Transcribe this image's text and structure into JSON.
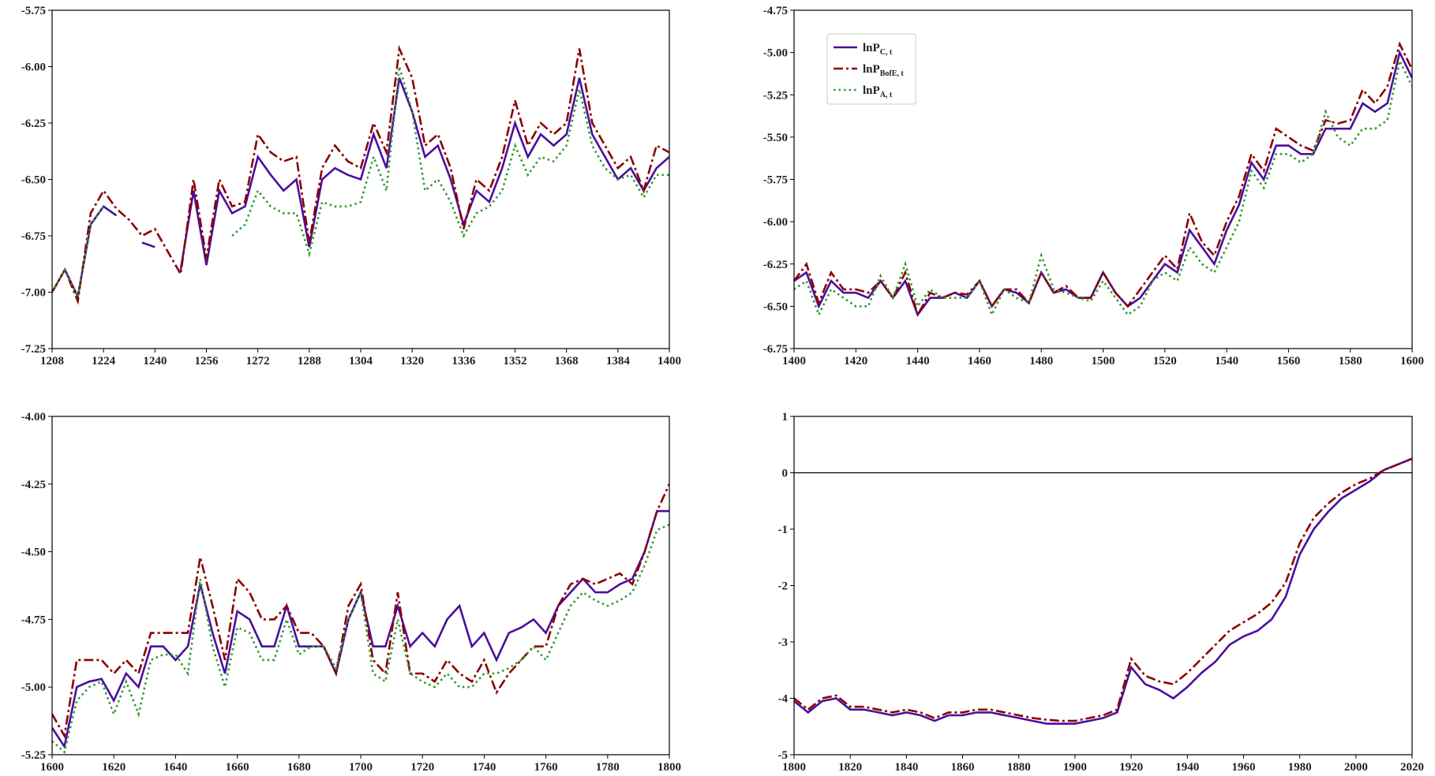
{
  "chart_data": [
    {
      "type": "line",
      "xlim": [
        1208,
        1400
      ],
      "xticks": [
        1208,
        1224,
        1240,
        1256,
        1272,
        1288,
        1304,
        1320,
        1336,
        1352,
        1368,
        1384,
        1400
      ],
      "ylim": [
        -7.25,
        -5.75
      ],
      "yticks": [
        -7.25,
        {
          "value": -7,
          "label": "-7.00"
        },
        -6.75,
        {
          "value": -6.5,
          "label": "-6.50"
        },
        -6.25,
        {
          "value": -6,
          "label": "-6.00"
        },
        -5.75
      ],
      "x": [
        1208,
        1212,
        1216,
        1220,
        1224,
        1228,
        1232,
        1236,
        1240,
        1244,
        1248,
        1252,
        1256,
        1260,
        1264,
        1268,
        1272,
        1276,
        1280,
        1284,
        1288,
        1292,
        1296,
        1300,
        1304,
        1308,
        1312,
        1316,
        1320,
        1324,
        1328,
        1332,
        1336,
        1340,
        1344,
        1348,
        1352,
        1356,
        1360,
        1364,
        1368,
        1372,
        1376,
        1380,
        1384,
        1388,
        1392,
        1396,
        1400
      ],
      "series": [
        {
          "color": "#4b0f9e",
          "dash": "solid",
          "values": [
            -7.0,
            -6.9,
            -7.02,
            -6.7,
            -6.62,
            -6.66,
            null,
            -6.78,
            -6.8,
            null,
            -6.9,
            -6.55,
            -6.88,
            -6.55,
            -6.65,
            -6.62,
            -6.4,
            -6.48,
            -6.55,
            -6.5,
            -6.8,
            -6.5,
            -6.45,
            -6.48,
            -6.5,
            -6.3,
            -6.45,
            -6.05,
            -6.2,
            -6.4,
            -6.35,
            -6.5,
            -6.7,
            -6.55,
            -6.6,
            -6.45,
            -6.25,
            -6.4,
            -6.3,
            -6.35,
            -6.3,
            -6.05,
            -6.3,
            -6.4,
            -6.5,
            -6.45,
            -6.55,
            -6.45,
            -6.4
          ]
        },
        {
          "color": "#8b0000",
          "dash": "dashdot",
          "values": [
            -7.0,
            -6.9,
            -7.04,
            -6.65,
            -6.55,
            -6.63,
            -6.68,
            -6.75,
            -6.72,
            -6.82,
            -6.92,
            -6.5,
            -6.85,
            -6.5,
            -6.62,
            -6.6,
            -6.3,
            -6.38,
            -6.42,
            -6.4,
            -6.78,
            -6.45,
            -6.35,
            -6.42,
            -6.45,
            -6.25,
            -6.38,
            -5.92,
            -6.05,
            -6.35,
            -6.3,
            -6.45,
            -6.72,
            -6.5,
            -6.55,
            -6.4,
            -6.15,
            -6.35,
            -6.25,
            -6.3,
            -6.25,
            -5.92,
            -6.25,
            -6.35,
            -6.45,
            -6.4,
            -6.55,
            -6.35,
            -6.38
          ]
        },
        {
          "color": "#2e9a2e",
          "dash": "dotted",
          "values": [
            -7.0,
            -6.9,
            -7.02,
            -6.7,
            -6.62,
            null,
            null,
            null,
            null,
            null,
            null,
            null,
            null,
            null,
            -6.75,
            -6.7,
            -6.55,
            -6.62,
            -6.65,
            -6.65,
            -6.83,
            -6.6,
            -6.62,
            -6.62,
            -6.6,
            -6.4,
            -6.55,
            -6.0,
            -6.2,
            -6.55,
            -6.5,
            -6.6,
            -6.75,
            -6.65,
            -6.62,
            -6.55,
            -6.35,
            -6.48,
            -6.4,
            -6.42,
            -6.35,
            -6.1,
            -6.35,
            -6.45,
            -6.5,
            -6.48,
            -6.58,
            -6.48,
            -6.48
          ]
        }
      ]
    },
    {
      "type": "line",
      "xlim": [
        1400,
        1600
      ],
      "xticks": [
        1400,
        1420,
        1440,
        1460,
        1480,
        1500,
        1520,
        1540,
        1560,
        1580,
        1600
      ],
      "ylim": [
        -6.75,
        -4.75
      ],
      "yticks": [
        -6.75,
        {
          "value": -6.5,
          "label": "-6.50"
        },
        -6.25,
        {
          "value": -6,
          "label": "-6.00"
        },
        -5.75,
        {
          "value": -5.5,
          "label": "-5.50"
        },
        -5.25,
        {
          "value": -5,
          "label": "-5.00"
        },
        -4.75
      ],
      "legend": "upper left",
      "x": [
        1400,
        1404,
        1408,
        1412,
        1416,
        1420,
        1424,
        1428,
        1432,
        1436,
        1440,
        1444,
        1448,
        1452,
        1456,
        1460,
        1464,
        1468,
        1472,
        1476,
        1480,
        1484,
        1488,
        1492,
        1496,
        1500,
        1504,
        1508,
        1512,
        1516,
        1520,
        1524,
        1528,
        1532,
        1536,
        1540,
        1544,
        1548,
        1552,
        1556,
        1560,
        1564,
        1568,
        1572,
        1576,
        1580,
        1584,
        1588,
        1592,
        1596,
        1600
      ],
      "series": [
        {
          "name": "lnP",
          "name_sub": "C, t",
          "color": "#4b0f9e",
          "dash": "solid",
          "values": [
            -6.35,
            -6.3,
            -6.5,
            -6.35,
            -6.42,
            -6.42,
            -6.45,
            -6.35,
            -6.45,
            -6.35,
            -6.55,
            -6.45,
            -6.45,
            -6.42,
            -6.45,
            -6.35,
            -6.5,
            -6.4,
            -6.42,
            -6.48,
            -6.3,
            -6.42,
            -6.4,
            -6.45,
            -6.45,
            -6.3,
            -6.42,
            -6.5,
            -6.45,
            -6.35,
            -6.25,
            -6.3,
            -6.05,
            -6.15,
            -6.25,
            -6.05,
            -5.9,
            -5.65,
            -5.75,
            -5.55,
            -5.55,
            -5.6,
            -5.6,
            -5.45,
            -5.45,
            -5.45,
            -5.3,
            -5.35,
            -5.3,
            -5.0,
            -5.15
          ]
        },
        {
          "name": "lnP",
          "name_sub": "BofE, t",
          "color": "#8b0000",
          "dash": "dashdot",
          "values": [
            -6.35,
            -6.25,
            -6.48,
            -6.3,
            -6.4,
            -6.4,
            -6.42,
            -6.35,
            -6.45,
            -6.3,
            -6.55,
            -6.42,
            -6.45,
            -6.42,
            -6.43,
            -6.35,
            -6.5,
            -6.4,
            -6.4,
            -6.48,
            -6.3,
            -6.42,
            -6.38,
            -6.45,
            -6.45,
            -6.3,
            -6.42,
            -6.5,
            -6.4,
            -6.3,
            -6.2,
            -6.28,
            -5.95,
            -6.12,
            -6.2,
            -6.0,
            -5.85,
            -5.6,
            -5.7,
            -5.45,
            -5.5,
            -5.55,
            -5.58,
            -5.4,
            -5.42,
            -5.4,
            -5.22,
            -5.3,
            -5.2,
            -4.95,
            -5.1
          ]
        },
        {
          "name": "lnP",
          "name_sub": "A, t",
          "color": "#2e9a2e",
          "dash": "dotted",
          "values": [
            -6.4,
            -6.35,
            -6.55,
            -6.4,
            -6.45,
            -6.5,
            -6.5,
            -6.32,
            -6.45,
            -6.25,
            -6.5,
            -6.4,
            -6.45,
            -6.45,
            -6.45,
            -6.35,
            -6.55,
            -6.4,
            -6.45,
            -6.48,
            -6.2,
            -6.4,
            -6.42,
            -6.45,
            -6.47,
            -6.35,
            -6.45,
            -6.55,
            -6.5,
            -6.35,
            -6.3,
            -6.35,
            -6.15,
            -6.25,
            -6.3,
            -6.15,
            -6.0,
            -5.7,
            -5.8,
            -5.6,
            -5.6,
            -5.65,
            -5.6,
            -5.35,
            -5.5,
            -5.55,
            -5.45,
            -5.45,
            -5.4,
            -5.05,
            -5.2
          ]
        }
      ]
    },
    {
      "type": "line",
      "xlim": [
        1600,
        1800
      ],
      "xticks": [
        1600,
        1620,
        1640,
        1660,
        1680,
        1700,
        1720,
        1740,
        1760,
        1780,
        1800
      ],
      "ylim": [
        -5.25,
        -4
      ],
      "yticks": [
        -5.25,
        {
          "value": -5,
          "label": "-5.00"
        },
        -4.75,
        {
          "value": -4.5,
          "label": "-4.50"
        },
        -4.25,
        {
          "value": -4,
          "label": "-4.00"
        }
      ],
      "x": [
        1600,
        1604,
        1608,
        1612,
        1616,
        1620,
        1624,
        1628,
        1632,
        1636,
        1640,
        1644,
        1648,
        1652,
        1656,
        1660,
        1664,
        1668,
        1672,
        1676,
        1680,
        1684,
        1688,
        1692,
        1696,
        1700,
        1704,
        1708,
        1712,
        1716,
        1720,
        1724,
        1728,
        1732,
        1736,
        1740,
        1744,
        1748,
        1752,
        1756,
        1760,
        1764,
        1768,
        1772,
        1776,
        1780,
        1784,
        1788,
        1792,
        1796,
        1800
      ],
      "series": [
        {
          "color": "#4b0f9e",
          "dash": "solid",
          "values": [
            -5.15,
            -5.22,
            -5.0,
            -4.98,
            -4.97,
            -5.05,
            -4.95,
            -5.0,
            -4.85,
            -4.85,
            -4.9,
            -4.85,
            -4.62,
            -4.8,
            -4.95,
            -4.72,
            -4.75,
            -4.85,
            -4.85,
            -4.7,
            -4.85,
            -4.85,
            -4.85,
            -4.95,
            -4.75,
            -4.65,
            -4.85,
            -4.85,
            -4.7,
            -4.85,
            -4.8,
            -4.85,
            -4.75,
            -4.7,
            -4.85,
            -4.8,
            -4.9,
            -4.8,
            -4.78,
            -4.75,
            -4.8,
            -4.7,
            -4.65,
            -4.6,
            -4.65,
            -4.65,
            -4.62,
            -4.6,
            -4.5,
            -4.35,
            -4.35
          ]
        },
        {
          "color": "#8b0000",
          "dash": "dashdot",
          "values": [
            -5.1,
            -5.18,
            -4.9,
            -4.9,
            -4.9,
            -4.95,
            -4.9,
            -4.95,
            -4.8,
            -4.8,
            -4.8,
            -4.8,
            -4.52,
            -4.7,
            -4.9,
            -4.6,
            -4.65,
            -4.75,
            -4.75,
            -4.7,
            -4.8,
            -4.8,
            -4.85,
            -4.95,
            -4.7,
            -4.62,
            -4.9,
            -4.95,
            -4.65,
            -4.95,
            -4.95,
            -4.98,
            -4.9,
            -4.95,
            -4.98,
            -4.9,
            -5.02,
            -4.95,
            -4.9,
            -4.85,
            -4.85,
            -4.7,
            -4.62,
            -4.6,
            -4.62,
            -4.6,
            -4.58,
            -4.62,
            -4.5,
            -4.35,
            -4.25
          ]
        },
        {
          "color": "#2e9a2e",
          "dash": "dotted",
          "values": [
            -5.2,
            -5.24,
            -5.05,
            -5.0,
            -4.98,
            -5.1,
            -4.98,
            -5.1,
            -4.9,
            -4.88,
            -4.88,
            -4.95,
            -4.6,
            -4.85,
            -5.0,
            -4.78,
            -4.8,
            -4.9,
            -4.9,
            -4.75,
            -4.88,
            -4.85,
            -4.85,
            -4.93,
            -4.75,
            -4.65,
            -4.95,
            -4.98,
            -4.75,
            -4.95,
            -4.98,
            -5.0,
            -4.95,
            -5.0,
            -5.0,
            -4.95,
            -4.95,
            -4.93,
            -4.9,
            -4.85,
            -4.9,
            -4.8,
            -4.7,
            -4.65,
            -4.68,
            -4.7,
            -4.68,
            -4.65,
            -4.55,
            -4.42,
            -4.4
          ]
        }
      ]
    },
    {
      "type": "line",
      "xlim": [
        1800,
        2020
      ],
      "xticks": [
        1800,
        1820,
        1840,
        1860,
        1880,
        1900,
        1920,
        1940,
        1960,
        1980,
        2000,
        2020
      ],
      "ylim": [
        -5,
        1
      ],
      "yticks": [
        -5,
        -4,
        -3,
        -2,
        -1,
        0,
        1
      ],
      "hline": 0,
      "x": [
        1800,
        1805,
        1810,
        1815,
        1820,
        1825,
        1830,
        1835,
        1840,
        1845,
        1850,
        1855,
        1860,
        1865,
        1870,
        1875,
        1880,
        1885,
        1890,
        1895,
        1900,
        1905,
        1910,
        1915,
        1920,
        1925,
        1930,
        1935,
        1940,
        1945,
        1950,
        1955,
        1960,
        1965,
        1970,
        1975,
        1980,
        1985,
        1990,
        1995,
        2000,
        2005,
        2010,
        2015,
        2020
      ],
      "series": [
        {
          "color": "#4b0f9e",
          "dash": "solid",
          "values": [
            -4.05,
            -4.25,
            -4.05,
            -4.0,
            -4.2,
            -4.2,
            -4.25,
            -4.3,
            -4.25,
            -4.3,
            -4.4,
            -4.3,
            -4.3,
            -4.25,
            -4.25,
            -4.3,
            -4.35,
            -4.4,
            -4.45,
            -4.45,
            -4.45,
            -4.4,
            -4.35,
            -4.25,
            -3.45,
            -3.75,
            -3.85,
            -4.0,
            -3.8,
            -3.55,
            -3.35,
            -3.05,
            -2.9,
            -2.8,
            -2.6,
            -2.2,
            -1.45,
            -1.0,
            -0.7,
            -0.45,
            -0.3,
            -0.15,
            0.05,
            0.15,
            0.25
          ]
        },
        {
          "color": "#8b0000",
          "dash": "dashdot",
          "values": [
            -4.0,
            -4.2,
            -4.0,
            -3.95,
            -4.15,
            -4.15,
            -4.2,
            -4.25,
            -4.2,
            -4.25,
            -4.35,
            -4.25,
            -4.25,
            -4.2,
            -4.2,
            -4.25,
            -4.3,
            -4.35,
            -4.38,
            -4.4,
            -4.4,
            -4.35,
            -4.3,
            -4.2,
            -3.3,
            -3.6,
            -3.7,
            -3.75,
            -3.55,
            -3.3,
            -3.05,
            -2.8,
            -2.65,
            -2.5,
            -2.3,
            -1.95,
            -1.25,
            -0.8,
            -0.55,
            -0.35,
            -0.2,
            -0.1,
            0.05,
            0.15,
            0.25
          ]
        }
      ]
    }
  ]
}
